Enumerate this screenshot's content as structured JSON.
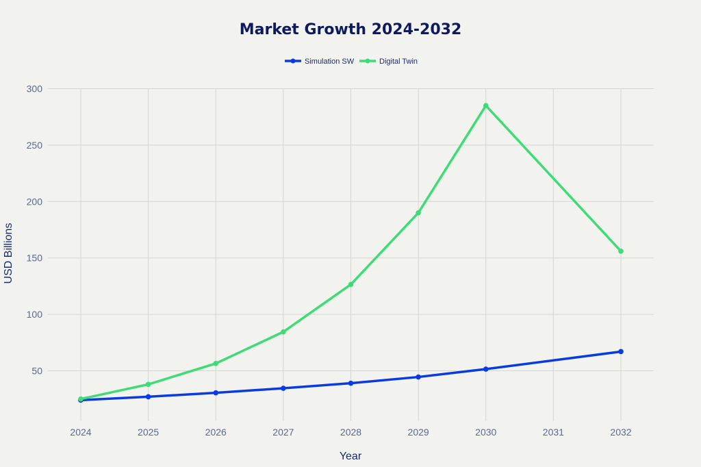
{
  "chart_data": {
    "type": "line",
    "title": "Market Growth 2024-2032",
    "xlabel": "Year",
    "ylabel": "USD Billions",
    "x_ticks": [
      "2024",
      "2025",
      "2026",
      "2027",
      "2028",
      "2029",
      "2030",
      "2031",
      "2032"
    ],
    "y_ticks": [
      "50",
      "100",
      "150",
      "200",
      "250",
      "300"
    ],
    "xlim": [
      2024,
      2032
    ],
    "ylim": [
      7,
      300
    ],
    "grid": true,
    "legend_position": "top-center",
    "series": [
      {
        "name": "Simulation SW",
        "color": "#0a3be0",
        "points": [
          {
            "x": 2024,
            "y": 24
          },
          {
            "x": 2025,
            "y": 27
          },
          {
            "x": 2026,
            "y": 30.5
          },
          {
            "x": 2027,
            "y": 34.5
          },
          {
            "x": 2028,
            "y": 39
          },
          {
            "x": 2029,
            "y": 44.5
          },
          {
            "x": 2030,
            "y": 51.5
          },
          {
            "x": 2032,
            "y": 67
          }
        ]
      },
      {
        "name": "Digital Twin",
        "color": "#3ddc76",
        "points": [
          {
            "x": 2024,
            "y": 25
          },
          {
            "x": 2025,
            "y": 38
          },
          {
            "x": 2026,
            "y": 56.5
          },
          {
            "x": 2027,
            "y": 84.5
          },
          {
            "x": 2028,
            "y": 126.5
          },
          {
            "x": 2029,
            "y": 190
          },
          {
            "x": 2030,
            "y": 285
          },
          {
            "x": 2032,
            "y": 156
          }
        ]
      }
    ]
  }
}
